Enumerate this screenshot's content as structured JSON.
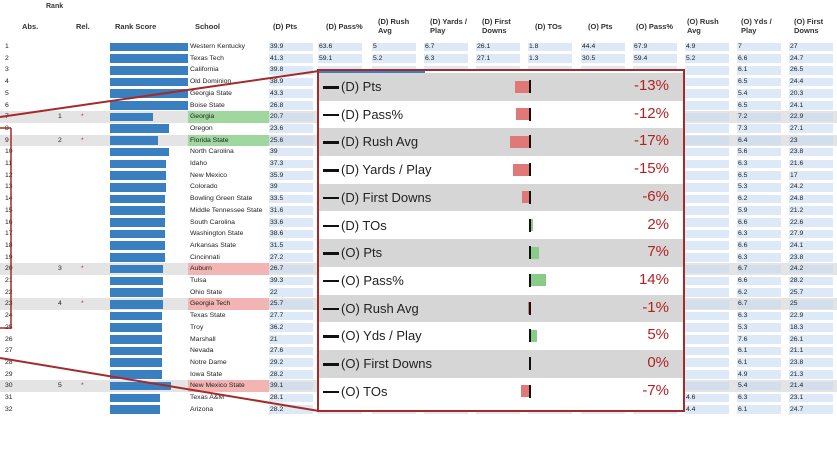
{
  "rank_group_title": "Rank",
  "columns": {
    "abs": "Abs.",
    "rel": "Rel.",
    "rank_score": "Rank Score",
    "school": "School",
    "d_pts": "(D) Pts",
    "d_pass": "(D) Pass%",
    "d_rush": "(D) Rush Avg",
    "d_ypp": "(D) Yards / Play",
    "d_fd": "(D) First Downs",
    "d_tos": "(D) TOs",
    "o_pts": "(O) Pts",
    "o_pass": "(O) Pass%",
    "o_rush": "(O) Rush Avg",
    "o_ypp": "(O) Yds / Play",
    "o_fd": "(O) First Downs"
  },
  "rows": [
    {
      "abs": "1",
      "rel": "",
      "star": "",
      "score": 1.0,
      "school": "Western Kentucky",
      "tag": "",
      "d_pts": "39.9",
      "d_pass": "63.6",
      "d_rush": "5",
      "d_ypp": "6.7",
      "d_fd": "26.1",
      "d_tos": "1.8",
      "o_pts": "44.4",
      "o_pass": "67.9",
      "o_rush": "4.9",
      "o_ypp": "7",
      "o_fd": "27"
    },
    {
      "abs": "2",
      "rel": "",
      "star": "",
      "score": 1.0,
      "school": "Texas Tech",
      "tag": "",
      "d_pts": "41.3",
      "d_pass": "59.1",
      "d_rush": "5.2",
      "d_ypp": "6.3",
      "d_fd": "27.1",
      "d_tos": "1.3",
      "o_pts": "30.5",
      "o_pass": "59.4",
      "o_rush": "5.2",
      "o_ypp": "6.6",
      "o_fd": "24.7"
    },
    {
      "abs": "3",
      "rel": "",
      "star": "",
      "score": 1.0,
      "school": "California",
      "tag": "",
      "d_pts": "39.8",
      "d_pass": "",
      "d_rush": "",
      "d_ypp": "",
      "d_fd": "",
      "d_tos": "",
      "o_pts": "",
      "o_pass": "",
      "o_rush": "",
      "o_ypp": "6.1",
      "o_fd": "26.5"
    },
    {
      "abs": "4",
      "rel": "",
      "star": "",
      "score": 1.0,
      "school": "Old Dominion",
      "tag": "",
      "d_pts": "38.9",
      "d_pass": "",
      "d_rush": "",
      "d_ypp": "",
      "d_fd": "",
      "d_tos": "",
      "o_pts": "",
      "o_pass": "",
      "o_rush": "",
      "o_ypp": "6.5",
      "o_fd": "24.4"
    },
    {
      "abs": "5",
      "rel": "",
      "star": "",
      "score": 1.0,
      "school": "Georgia State",
      "tag": "",
      "d_pts": "43.3",
      "d_pass": "",
      "d_rush": "",
      "d_ypp": "",
      "d_fd": "",
      "d_tos": "",
      "o_pts": "",
      "o_pass": "",
      "o_rush": "",
      "o_ypp": "5.4",
      "o_fd": "20.3"
    },
    {
      "abs": "6",
      "rel": "",
      "star": "",
      "score": 1.0,
      "school": "Boise State",
      "tag": "",
      "d_pts": "26.8",
      "d_pass": "",
      "d_rush": "",
      "d_ypp": "",
      "d_fd": "",
      "d_tos": "",
      "o_pts": "",
      "o_pass": "",
      "o_rush": "",
      "o_ypp": "6.5",
      "o_fd": "24.1"
    },
    {
      "abs": "7",
      "rel": "1",
      "star": "*",
      "score": 0.55,
      "school": "Georgia",
      "tag": "g",
      "d_pts": "20.7",
      "d_pass": "",
      "d_rush": "",
      "d_ypp": "",
      "d_fd": "",
      "d_tos": "",
      "o_pts": "",
      "o_pass": "",
      "o_rush": "",
      "o_ypp": "7.2",
      "o_fd": "22.9"
    },
    {
      "abs": "8",
      "rel": "",
      "star": "",
      "score": 0.75,
      "school": "Oregon",
      "tag": "",
      "d_pts": "23.6",
      "d_pass": "",
      "d_rush": "",
      "d_ypp": "",
      "d_fd": "",
      "d_tos": "",
      "o_pts": "",
      "o_pass": "",
      "o_rush": "",
      "o_ypp": "7.3",
      "o_fd": "27.1"
    },
    {
      "abs": "9",
      "rel": "2",
      "star": "*",
      "score": 0.62,
      "school": "Florida State",
      "tag": "g",
      "d_pts": "25.6",
      "d_pass": "",
      "d_rush": "",
      "d_ypp": "",
      "d_fd": "",
      "d_tos": "",
      "o_pts": "",
      "o_pass": "",
      "o_rush": "",
      "o_ypp": "6.4",
      "o_fd": "23"
    },
    {
      "abs": "10",
      "rel": "",
      "star": "",
      "score": 0.75,
      "school": "North Carolina",
      "tag": "",
      "d_pts": "39",
      "d_pass": "",
      "d_rush": "",
      "d_ypp": "",
      "d_fd": "",
      "d_tos": "",
      "o_pts": "",
      "o_pass": "",
      "o_rush": "",
      "o_ypp": "5.6",
      "o_fd": "23.8"
    },
    {
      "abs": "11",
      "rel": "",
      "star": "",
      "score": 0.72,
      "school": "Idaho",
      "tag": "",
      "d_pts": "37.3",
      "d_pass": "",
      "d_rush": "",
      "d_ypp": "",
      "d_fd": "",
      "d_tos": "",
      "o_pts": "",
      "o_pass": "",
      "o_rush": "",
      "o_ypp": "6.3",
      "o_fd": "21.6"
    },
    {
      "abs": "12",
      "rel": "",
      "star": "",
      "score": 0.72,
      "school": "New Mexico",
      "tag": "",
      "d_pts": "35.9",
      "d_pass": "",
      "d_rush": "",
      "d_ypp": "",
      "d_fd": "",
      "d_tos": "",
      "o_pts": "",
      "o_pass": "",
      "o_rush": "",
      "o_ypp": "6.5",
      "o_fd": "17"
    },
    {
      "abs": "13",
      "rel": "",
      "star": "",
      "score": 0.72,
      "school": "Colorado",
      "tag": "",
      "d_pts": "39",
      "d_pass": "",
      "d_rush": "",
      "d_ypp": "",
      "d_fd": "",
      "d_tos": "",
      "o_pts": "",
      "o_pass": "",
      "o_rush": "",
      "o_ypp": "5.3",
      "o_fd": "24.2"
    },
    {
      "abs": "14",
      "rel": "",
      "star": "",
      "score": 0.7,
      "school": "Bowling Green State",
      "tag": "",
      "d_pts": "33.5",
      "d_pass": "",
      "d_rush": "",
      "d_ypp": "",
      "d_fd": "",
      "d_tos": "",
      "o_pts": "",
      "o_pass": "",
      "o_rush": "",
      "o_ypp": "6.2",
      "o_fd": "24.8"
    },
    {
      "abs": "15",
      "rel": "",
      "star": "",
      "score": 0.7,
      "school": "Middle Tennessee State",
      "tag": "",
      "d_pts": "31.6",
      "d_pass": "",
      "d_rush": "",
      "d_ypp": "",
      "d_fd": "",
      "d_tos": "",
      "o_pts": "",
      "o_pass": "",
      "o_rush": "",
      "o_ypp": "5.9",
      "o_fd": "21.2"
    },
    {
      "abs": "16",
      "rel": "",
      "star": "",
      "score": 0.7,
      "school": "South Carolina",
      "tag": "",
      "d_pts": "33.6",
      "d_pass": "",
      "d_rush": "",
      "d_ypp": "",
      "d_fd": "",
      "d_tos": "",
      "o_pts": "",
      "o_pass": "",
      "o_rush": "",
      "o_ypp": "6.6",
      "o_fd": "22.6"
    },
    {
      "abs": "17",
      "rel": "",
      "star": "",
      "score": 0.7,
      "school": "Washington State",
      "tag": "",
      "d_pts": "38.6",
      "d_pass": "",
      "d_rush": "",
      "d_ypp": "",
      "d_fd": "",
      "d_tos": "",
      "o_pts": "",
      "o_pass": "",
      "o_rush": "",
      "o_ypp": "6.3",
      "o_fd": "27.9"
    },
    {
      "abs": "18",
      "rel": "",
      "star": "",
      "score": 0.7,
      "school": "Arkansas State",
      "tag": "",
      "d_pts": "31.5",
      "d_pass": "",
      "d_rush": "",
      "d_ypp": "",
      "d_fd": "",
      "d_tos": "",
      "o_pts": "",
      "o_pass": "",
      "o_rush": "",
      "o_ypp": "6.6",
      "o_fd": "24.1"
    },
    {
      "abs": "19",
      "rel": "",
      "star": "",
      "score": 0.7,
      "school": "Cincinnati",
      "tag": "",
      "d_pts": "27.2",
      "d_pass": "",
      "d_rush": "",
      "d_ypp": "",
      "d_fd": "",
      "d_tos": "",
      "o_pts": "",
      "o_pass": "",
      "o_rush": "",
      "o_ypp": "6.3",
      "o_fd": "23.8"
    },
    {
      "abs": "20",
      "rel": "3",
      "star": "*",
      "score": 0.68,
      "school": "Auburn",
      "tag": "r",
      "d_pts": "26.7",
      "d_pass": "",
      "d_rush": "",
      "d_ypp": "",
      "d_fd": "",
      "d_tos": "",
      "o_pts": "",
      "o_pass": "",
      "o_rush": "",
      "o_ypp": "6.7",
      "o_fd": "24.2"
    },
    {
      "abs": "21",
      "rel": "",
      "star": "",
      "score": 0.68,
      "school": "Tulsa",
      "tag": "",
      "d_pts": "39.3",
      "d_pass": "",
      "d_rush": "",
      "d_ypp": "",
      "d_fd": "",
      "d_tos": "",
      "o_pts": "",
      "o_pass": "",
      "o_rush": "",
      "o_ypp": "6.6",
      "o_fd": "28.2"
    },
    {
      "abs": "22",
      "rel": "",
      "star": "",
      "score": 0.68,
      "school": "Ohio State",
      "tag": "",
      "d_pts": "22",
      "d_pass": "",
      "d_rush": "",
      "d_ypp": "",
      "d_fd": "",
      "d_tos": "",
      "o_pts": "",
      "o_pass": "",
      "o_rush": "",
      "o_ypp": "6.2",
      "o_fd": "25.7"
    },
    {
      "abs": "23",
      "rel": "4",
      "star": "*",
      "score": 0.68,
      "school": "Georgia Tech",
      "tag": "r",
      "d_pts": "25.7",
      "d_pass": "",
      "d_rush": "",
      "d_ypp": "",
      "d_fd": "",
      "d_tos": "",
      "o_pts": "",
      "o_pass": "",
      "o_rush": "",
      "o_ypp": "6.7",
      "o_fd": "25"
    },
    {
      "abs": "24",
      "rel": "",
      "star": "",
      "score": 0.66,
      "school": "Texas State",
      "tag": "",
      "d_pts": "27.7",
      "d_pass": "",
      "d_rush": "",
      "d_ypp": "",
      "d_fd": "",
      "d_tos": "",
      "o_pts": "",
      "o_pass": "",
      "o_rush": "",
      "o_ypp": "6.3",
      "o_fd": "22.9"
    },
    {
      "abs": "25",
      "rel": "",
      "star": "",
      "score": 0.66,
      "school": "Troy",
      "tag": "",
      "d_pts": "36.2",
      "d_pass": "",
      "d_rush": "",
      "d_ypp": "",
      "d_fd": "",
      "d_tos": "",
      "o_pts": "",
      "o_pass": "",
      "o_rush": "",
      "o_ypp": "5.3",
      "o_fd": "18.3"
    },
    {
      "abs": "26",
      "rel": "",
      "star": "",
      "score": 0.66,
      "school": "Marshall",
      "tag": "",
      "d_pts": "21",
      "d_pass": "",
      "d_rush": "",
      "d_ypp": "",
      "d_fd": "",
      "d_tos": "",
      "o_pts": "",
      "o_pass": "",
      "o_rush": "",
      "o_ypp": "7.6",
      "o_fd": "26.1"
    },
    {
      "abs": "27",
      "rel": "",
      "star": "",
      "score": 0.66,
      "school": "Nevada",
      "tag": "",
      "d_pts": "27.6",
      "d_pass": "",
      "d_rush": "",
      "d_ypp": "",
      "d_fd": "",
      "d_tos": "",
      "o_pts": "",
      "o_pass": "",
      "o_rush": "",
      "o_ypp": "6.1",
      "o_fd": "21.1"
    },
    {
      "abs": "28",
      "rel": "",
      "star": "",
      "score": 0.66,
      "school": "Notre Dame",
      "tag": "",
      "d_pts": "29.2",
      "d_pass": "",
      "d_rush": "",
      "d_ypp": "",
      "d_fd": "",
      "d_tos": "",
      "o_pts": "",
      "o_pass": "",
      "o_rush": "",
      "o_ypp": "6.1",
      "o_fd": "23.8"
    },
    {
      "abs": "29",
      "rel": "",
      "star": "",
      "score": 0.66,
      "school": "Iowa State",
      "tag": "",
      "d_pts": "28.2",
      "d_pass": "",
      "d_rush": "",
      "d_ypp": "",
      "d_fd": "",
      "d_tos": "",
      "o_pts": "",
      "o_pass": "",
      "o_rush": "",
      "o_ypp": "4.9",
      "o_fd": "21.3"
    },
    {
      "abs": "30",
      "rel": "5",
      "star": "*",
      "score": 0.78,
      "school": "New Mexico State",
      "tag": "r",
      "d_pts": "39.1",
      "d_pass": "",
      "d_rush": "",
      "d_ypp": "",
      "d_fd": "",
      "d_tos": "",
      "o_pts": "",
      "o_pass": "",
      "o_rush": "",
      "o_ypp": "5.4",
      "o_fd": "21.4"
    },
    {
      "abs": "31",
      "rel": "",
      "star": "",
      "score": 0.64,
      "school": "Texas A&M",
      "tag": "",
      "d_pts": "28.1",
      "d_pass": "56.1",
      "d_rush": "5",
      "d_ypp": "5.9",
      "d_fd": "23.2",
      "d_tos": "1",
      "o_pts": "35.2",
      "o_pass": "64.6",
      "o_rush": "4.6",
      "o_ypp": "6.3",
      "o_fd": "23.1"
    },
    {
      "abs": "32",
      "rel": "",
      "star": "",
      "score": 0.64,
      "school": "Arizona",
      "tag": "",
      "d_pts": "28.2",
      "d_pass": "65.4",
      "d_rush": "4.1",
      "d_ypp": "5.7",
      "d_fd": "24.1",
      "d_tos": "1.9",
      "o_pts": "34.5",
      "o_pass": "56.7",
      "o_rush": "4.4",
      "o_ypp": "6.1",
      "o_fd": "24.7"
    }
  ],
  "panel": {
    "accent": "#a52a2a",
    "items": [
      {
        "label": "(D) Pts",
        "pct": "-13%",
        "value": -13
      },
      {
        "label": "(D) Pass%",
        "pct": "-12%",
        "value": -12
      },
      {
        "label": "(D) Rush Avg",
        "pct": "-17%",
        "value": -17
      },
      {
        "label": "(D) Yards / Play",
        "pct": "-15%",
        "value": -15
      },
      {
        "label": "(D) First Downs",
        "pct": "-6%",
        "value": -6
      },
      {
        "label": "(D) TOs",
        "pct": "2%",
        "value": 2
      },
      {
        "label": "(O) Pts",
        "pct": "7%",
        "value": 7
      },
      {
        "label": "(O) Pass%",
        "pct": "14%",
        "value": 14
      },
      {
        "label": "(O) Rush Avg",
        "pct": "-1%",
        "value": -1
      },
      {
        "label": "(O) Yds / Play",
        "pct": "5%",
        "value": 5
      },
      {
        "label": "(O) First Downs",
        "pct": "0%",
        "value": 0
      },
      {
        "label": "(O) TOs",
        "pct": "-7%",
        "value": -7
      }
    ]
  }
}
